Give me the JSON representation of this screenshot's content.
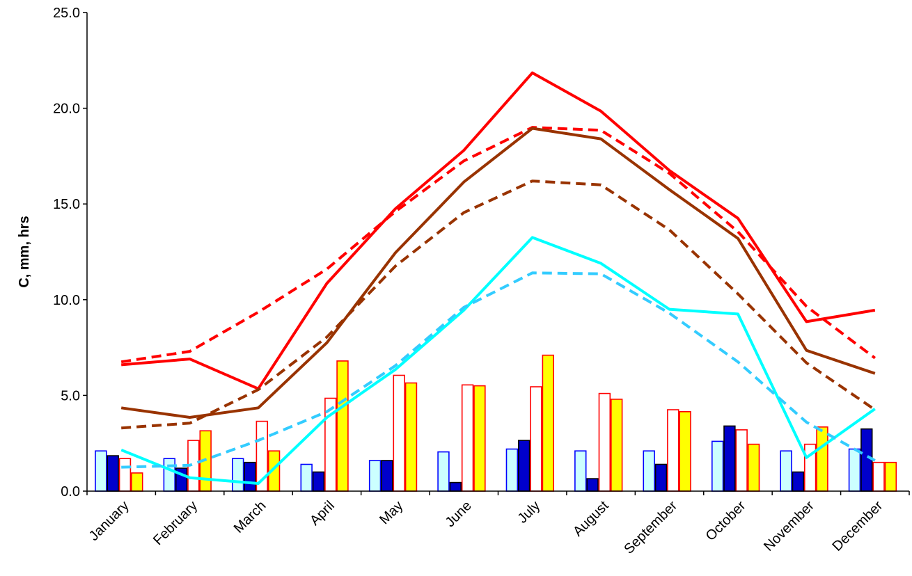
{
  "chart_data": {
    "type": "bar",
    "title": "",
    "xlabel": "",
    "ylabel": "C, mm, hrs",
    "ylim": [
      0,
      25
    ],
    "yticks": [
      "0.0",
      "5.0",
      "10.0",
      "15.0",
      "20.0",
      "25.0"
    ],
    "grid": false,
    "legend": "none",
    "categories": [
      "January",
      "February",
      "March",
      "April",
      "May",
      "June",
      "July",
      "August",
      "September",
      "October",
      "November",
      "December"
    ],
    "bar_series": [
      {
        "fill": "#ccffff",
        "stroke": "#0000ff",
        "values": [
          2.1,
          1.7,
          1.7,
          1.4,
          1.6,
          2.05,
          2.2,
          2.1,
          2.1,
          2.6,
          2.1,
          2.2
        ]
      },
      {
        "fill": "#0000cc",
        "stroke": "#000000",
        "values": [
          1.85,
          1.2,
          1.5,
          1.0,
          1.6,
          0.45,
          2.65,
          0.65,
          1.4,
          3.4,
          1.0,
          3.25
        ]
      },
      {
        "fill": "#ffffff",
        "stroke": "#ff0000",
        "values": [
          1.7,
          2.65,
          3.65,
          4.85,
          6.05,
          5.55,
          5.45,
          5.1,
          4.25,
          3.2,
          2.45,
          1.5
        ]
      },
      {
        "fill": "#ffff00",
        "stroke": "#ff0000",
        "values": [
          0.95,
          3.15,
          2.1,
          6.8,
          5.65,
          5.5,
          7.1,
          4.8,
          4.15,
          2.45,
          3.35,
          1.5
        ]
      }
    ],
    "line_series": [
      {
        "color": "#ff0000",
        "dash": false,
        "values": [
          6.6,
          6.9,
          5.35,
          10.85,
          14.75,
          17.8,
          21.85,
          19.85,
          16.75,
          14.25,
          8.85,
          9.45
        ]
      },
      {
        "color": "#ff0000",
        "dash": true,
        "values": [
          6.75,
          7.3,
          9.35,
          11.6,
          14.6,
          17.25,
          19.0,
          18.85,
          16.6,
          13.55,
          9.65,
          6.95
        ]
      },
      {
        "color": "#993300",
        "dash": false,
        "values": [
          4.35,
          3.85,
          4.35,
          7.75,
          12.45,
          16.15,
          18.95,
          18.4,
          15.75,
          13.2,
          7.35,
          6.15
        ]
      },
      {
        "color": "#993300",
        "dash": true,
        "values": [
          3.3,
          3.55,
          5.3,
          8.05,
          11.75,
          14.55,
          16.2,
          16.0,
          13.65,
          10.3,
          6.7,
          4.25
        ]
      },
      {
        "color": "#00ffff",
        "dash": false,
        "values": [
          2.15,
          0.7,
          0.4,
          3.85,
          6.35,
          9.45,
          13.25,
          11.9,
          9.5,
          9.25,
          1.75,
          4.3
        ]
      },
      {
        "color": "#33ccff",
        "dash": true,
        "values": [
          1.25,
          1.35,
          2.65,
          4.15,
          6.55,
          9.6,
          11.4,
          11.35,
          9.3,
          6.75,
          3.6,
          1.6
        ]
      }
    ]
  }
}
